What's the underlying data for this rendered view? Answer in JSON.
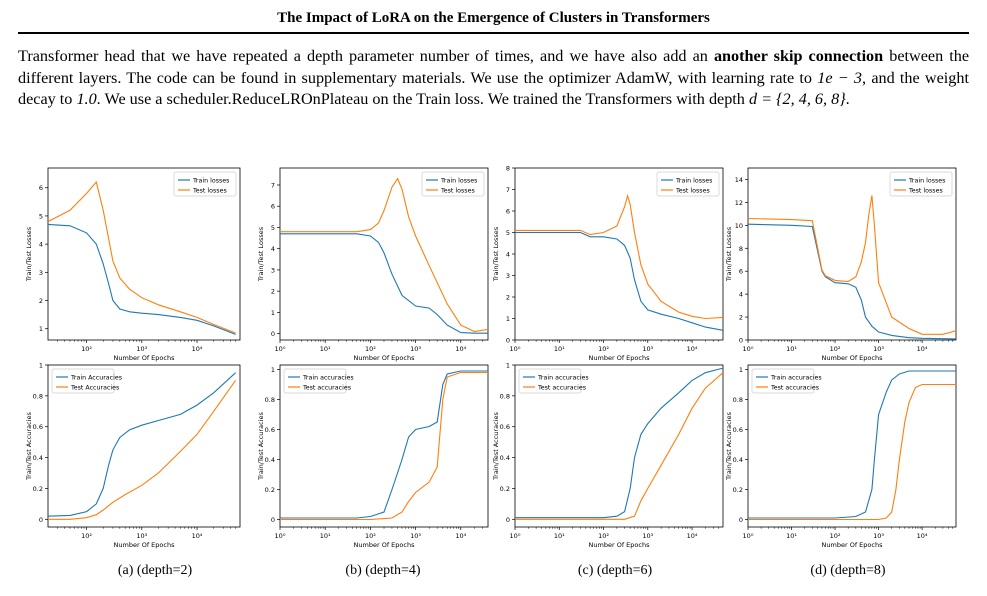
{
  "header": {
    "title": "The Impact of LoRA on the Emergence of Clusters in Transformers"
  },
  "paragraph": {
    "p1": "Transformer head that we have repeated a depth parameter number of times, and we have also add an ",
    "bold1": "another skip connection",
    "p2": " between the different layers. The code can be found in supplementary materials. We use the optimizer AdamW, with learning rate to ",
    "math1": "1e − 3",
    "p3": ", and the weight decay to ",
    "math2": "1.0",
    "p4": ". We use a scheduler.ReduceLROnPlateau on the Train loss. We trained the Transformers with depth ",
    "math3": "d = {2, 4, 6, 8}",
    "p5": "."
  },
  "colors": {
    "train": "#1f77b4",
    "test": "#ff7f0e"
  },
  "captions": [
    "(a) (depth=2)",
    "(b) (depth=4)",
    "(c) (depth=6)",
    "(d) (depth=8)"
  ],
  "chart_data": [
    {
      "id": "loss-depth2",
      "type": "line",
      "xscale": "log",
      "xlim": [
        20,
        60000
      ],
      "ylim": [
        0.6,
        6.7
      ],
      "yticks": [
        1,
        2,
        3,
        4,
        5,
        6
      ],
      "xticks": [
        100,
        1000,
        10000
      ],
      "xticklabels": [
        "10^2",
        "10^3",
        "10^4"
      ],
      "xlabel": "Number Of Epochs",
      "ylabel": "Train/Test Losses",
      "legend": "top-right",
      "series": [
        {
          "name": "Train losses",
          "x": [
            20,
            50,
            100,
            150,
            200,
            250,
            300,
            400,
            600,
            1000,
            2000,
            5000,
            10000,
            20000,
            50000
          ],
          "y": [
            4.7,
            4.65,
            4.4,
            4.0,
            3.3,
            2.6,
            2.0,
            1.7,
            1.6,
            1.55,
            1.5,
            1.4,
            1.3,
            1.1,
            0.8
          ]
        },
        {
          "name": "Test losses",
          "x": [
            20,
            50,
            100,
            150,
            200,
            250,
            300,
            400,
            600,
            1000,
            2000,
            5000,
            10000,
            20000,
            50000
          ],
          "y": [
            4.8,
            5.2,
            5.8,
            6.2,
            5.2,
            4.2,
            3.4,
            2.8,
            2.4,
            2.1,
            1.85,
            1.6,
            1.4,
            1.15,
            0.85
          ]
        }
      ]
    },
    {
      "id": "loss-depth4",
      "type": "line",
      "xscale": "log",
      "xlim": [
        1,
        40000
      ],
      "ylim": [
        -0.3,
        7.8
      ],
      "yticks": [
        0,
        1,
        2,
        3,
        4,
        5,
        6,
        7
      ],
      "xticks": [
        1,
        10,
        100,
        1000,
        10000
      ],
      "xticklabels": [
        "10^0",
        "10^1",
        "10^2",
        "10^3",
        "10^4"
      ],
      "xlabel": "Number Of Epochs",
      "ylabel": "Train/Test Losses",
      "legend": "top-right",
      "series": [
        {
          "name": "Train losses",
          "x": [
            1,
            10,
            50,
            100,
            150,
            200,
            300,
            500,
            1000,
            2000,
            3000,
            5000,
            10000,
            20000,
            40000
          ],
          "y": [
            4.7,
            4.7,
            4.7,
            4.6,
            4.3,
            3.8,
            2.8,
            1.8,
            1.3,
            1.2,
            0.9,
            0.4,
            0.05,
            0.02,
            0.02
          ]
        },
        {
          "name": "Test losses",
          "x": [
            1,
            10,
            50,
            100,
            150,
            200,
            300,
            400,
            500,
            700,
            1000,
            2000,
            5000,
            10000,
            20000,
            40000
          ],
          "y": [
            4.8,
            4.8,
            4.8,
            4.9,
            5.2,
            5.8,
            6.9,
            7.3,
            6.8,
            5.5,
            4.6,
            3.2,
            1.4,
            0.4,
            0.1,
            0.2
          ]
        }
      ]
    },
    {
      "id": "loss-depth6",
      "type": "line",
      "xscale": "log",
      "xlim": [
        1,
        50000
      ],
      "ylim": [
        0,
        8
      ],
      "yticks": [
        0,
        1,
        2,
        3,
        4,
        5,
        6,
        7,
        8
      ],
      "xticks": [
        1,
        10,
        100,
        1000,
        10000
      ],
      "xticklabels": [
        "10^0",
        "10^1",
        "10^2",
        "10^3",
        "10^4"
      ],
      "xlabel": "Number Of Epochs",
      "ylabel": "Train/Test Losses",
      "legend": "top-right",
      "series": [
        {
          "name": "Train losses",
          "x": [
            1,
            10,
            30,
            50,
            100,
            200,
            300,
            400,
            500,
            700,
            1000,
            2000,
            5000,
            10000,
            20000,
            50000
          ],
          "y": [
            5.0,
            5.0,
            5.0,
            4.8,
            4.8,
            4.7,
            4.4,
            3.8,
            2.8,
            1.8,
            1.4,
            1.2,
            1.0,
            0.8,
            0.6,
            0.45
          ]
        },
        {
          "name": "Test losses",
          "x": [
            1,
            10,
            30,
            50,
            100,
            200,
            300,
            350,
            400,
            500,
            700,
            1000,
            2000,
            5000,
            10000,
            20000,
            50000
          ],
          "y": [
            5.1,
            5.1,
            5.1,
            4.9,
            5.0,
            5.3,
            6.2,
            6.7,
            6.3,
            5.0,
            3.5,
            2.6,
            1.8,
            1.3,
            1.1,
            1.0,
            1.05
          ]
        }
      ]
    },
    {
      "id": "loss-depth8",
      "type": "line",
      "xscale": "log",
      "xlim": [
        1,
        60000
      ],
      "ylim": [
        0,
        15
      ],
      "yticks": [
        0,
        2,
        4,
        6,
        8,
        10,
        12,
        14
      ],
      "xticks": [
        1,
        10,
        100,
        1000,
        10000
      ],
      "xticklabels": [
        "10^0",
        "10^1",
        "10^2",
        "10^3",
        "10^4"
      ],
      "xlabel": "Number Of Epochs",
      "ylabel": "Train/Test Losses",
      "legend": "top-right",
      "series": [
        {
          "name": "Train losses",
          "x": [
            1,
            10,
            30,
            50,
            60,
            100,
            200,
            300,
            400,
            500,
            700,
            1000,
            2000,
            5000,
            10000,
            60000
          ],
          "y": [
            10.1,
            10.0,
            9.9,
            6.0,
            5.5,
            5.0,
            4.9,
            4.6,
            3.5,
            2.0,
            1.2,
            0.7,
            0.4,
            0.2,
            0.15,
            0.1
          ]
        },
        {
          "name": "Test losses",
          "x": [
            1,
            10,
            30,
            50,
            60,
            100,
            200,
            300,
            400,
            500,
            600,
            700,
            800,
            1000,
            2000,
            5000,
            10000,
            30000,
            60000
          ],
          "y": [
            10.6,
            10.5,
            10.4,
            6.1,
            5.6,
            5.2,
            5.1,
            5.5,
            6.8,
            8.5,
            11.0,
            12.6,
            10.0,
            5.0,
            2.0,
            1.0,
            0.5,
            0.5,
            0.8
          ]
        }
      ]
    },
    {
      "id": "acc-depth2",
      "type": "line",
      "xscale": "log",
      "xlim": [
        20,
        60000
      ],
      "ylim": [
        -0.05,
        1.0
      ],
      "yticks": [
        0.0,
        0.2,
        0.4,
        0.6,
        0.8,
        1.0
      ],
      "xticks": [
        100,
        1000,
        10000
      ],
      "xticklabels": [
        "10^2",
        "10^3",
        "10^4"
      ],
      "xlabel": "Number Of Epochs",
      "ylabel": "Train/Test Accuracies",
      "legend": "top-left",
      "series": [
        {
          "name": "Train Accuracies",
          "x": [
            20,
            50,
            100,
            150,
            200,
            250,
            300,
            400,
            600,
            1000,
            2000,
            5000,
            10000,
            20000,
            50000
          ],
          "y": [
            0.02,
            0.025,
            0.05,
            0.1,
            0.2,
            0.35,
            0.45,
            0.53,
            0.58,
            0.61,
            0.64,
            0.68,
            0.74,
            0.82,
            0.95
          ]
        },
        {
          "name": "Test Accuracies",
          "x": [
            20,
            50,
            100,
            150,
            200,
            300,
            500,
            1000,
            2000,
            5000,
            10000,
            20000,
            50000
          ],
          "y": [
            0.0,
            0.0,
            0.01,
            0.03,
            0.06,
            0.11,
            0.16,
            0.22,
            0.3,
            0.44,
            0.55,
            0.7,
            0.9
          ]
        }
      ]
    },
    {
      "id": "acc-depth4",
      "type": "line",
      "xscale": "log",
      "xlim": [
        1,
        40000
      ],
      "ylim": [
        -0.05,
        1.03
      ],
      "yticks": [
        0.0,
        0.2,
        0.4,
        0.6,
        0.8,
        1.0
      ],
      "xticks": [
        1,
        10,
        100,
        1000,
        10000
      ],
      "xticklabels": [
        "10^0",
        "10^1",
        "10^2",
        "10^3",
        "10^4"
      ],
      "xlabel": "Number Of Epochs",
      "ylabel": "Train/Test Accuracies",
      "legend": "top-left",
      "series": [
        {
          "name": "Train accuracies",
          "x": [
            1,
            10,
            50,
            100,
            200,
            300,
            500,
            700,
            1000,
            2000,
            3000,
            4000,
            5000,
            10000,
            40000
          ],
          "y": [
            0.01,
            0.01,
            0.01,
            0.02,
            0.05,
            0.2,
            0.4,
            0.55,
            0.6,
            0.62,
            0.65,
            0.9,
            0.97,
            0.99,
            0.99
          ]
        },
        {
          "name": "Test accuracies",
          "x": [
            1,
            10,
            50,
            100,
            300,
            500,
            700,
            1000,
            2000,
            3000,
            4000,
            5000,
            10000,
            40000
          ],
          "y": [
            0.0,
            0.0,
            0.0,
            0.0,
            0.01,
            0.05,
            0.12,
            0.18,
            0.25,
            0.35,
            0.8,
            0.95,
            0.98,
            0.98
          ]
        }
      ]
    },
    {
      "id": "acc-depth6",
      "type": "line",
      "xscale": "log",
      "xlim": [
        1,
        50000
      ],
      "ylim": [
        -0.05,
        1.0
      ],
      "yticks": [
        0.0,
        0.2,
        0.4,
        0.6,
        0.8,
        1.0
      ],
      "xticks": [
        1,
        10,
        100,
        1000,
        10000
      ],
      "xticklabels": [
        "10^0",
        "10^1",
        "10^2",
        "10^3",
        "10^4"
      ],
      "xlabel": "Number Of Epochs",
      "ylabel": "Train/Test Accuracies",
      "legend": "top-left",
      "series": [
        {
          "name": "Train accuracies",
          "x": [
            1,
            10,
            50,
            100,
            200,
            300,
            400,
            500,
            700,
            1000,
            2000,
            5000,
            10000,
            20000,
            50000
          ],
          "y": [
            0.01,
            0.01,
            0.01,
            0.01,
            0.02,
            0.05,
            0.2,
            0.4,
            0.55,
            0.62,
            0.72,
            0.82,
            0.9,
            0.95,
            0.98
          ]
        },
        {
          "name": "Test accuracies",
          "x": [
            1,
            10,
            100,
            300,
            500,
            700,
            1000,
            2000,
            5000,
            10000,
            20000,
            50000
          ],
          "y": [
            0.0,
            0.0,
            0.0,
            0.0,
            0.02,
            0.12,
            0.2,
            0.35,
            0.55,
            0.72,
            0.85,
            0.95
          ]
        }
      ]
    },
    {
      "id": "acc-depth8",
      "type": "line",
      "xscale": "log",
      "xlim": [
        1,
        60000
      ],
      "ylim": [
        -0.05,
        1.03
      ],
      "yticks": [
        0.0,
        0.2,
        0.4,
        0.6,
        0.8,
        1.0
      ],
      "xticks": [
        1,
        10,
        100,
        1000,
        10000
      ],
      "xticklabels": [
        "10^0",
        "10^1",
        "10^2",
        "10^3",
        "10^4"
      ],
      "xlabel": "Number Of Epochs",
      "ylabel": "Train/Test Accuracies",
      "legend": "top-left",
      "series": [
        {
          "name": "Train accuracies",
          "x": [
            1,
            10,
            100,
            300,
            500,
            700,
            800,
            1000,
            1500,
            2000,
            3000,
            5000,
            10000,
            60000
          ],
          "y": [
            0.01,
            0.01,
            0.01,
            0.02,
            0.05,
            0.2,
            0.4,
            0.7,
            0.85,
            0.93,
            0.97,
            0.99,
            0.99,
            0.99
          ]
        },
        {
          "name": "Test accuracies",
          "x": [
            1,
            10,
            100,
            1000,
            1500,
            2000,
            2500,
            3000,
            4000,
            5000,
            7000,
            10000,
            60000
          ],
          "y": [
            0.0,
            0.0,
            0.0,
            0.0,
            0.01,
            0.05,
            0.2,
            0.4,
            0.65,
            0.78,
            0.88,
            0.9,
            0.9
          ]
        }
      ]
    }
  ]
}
